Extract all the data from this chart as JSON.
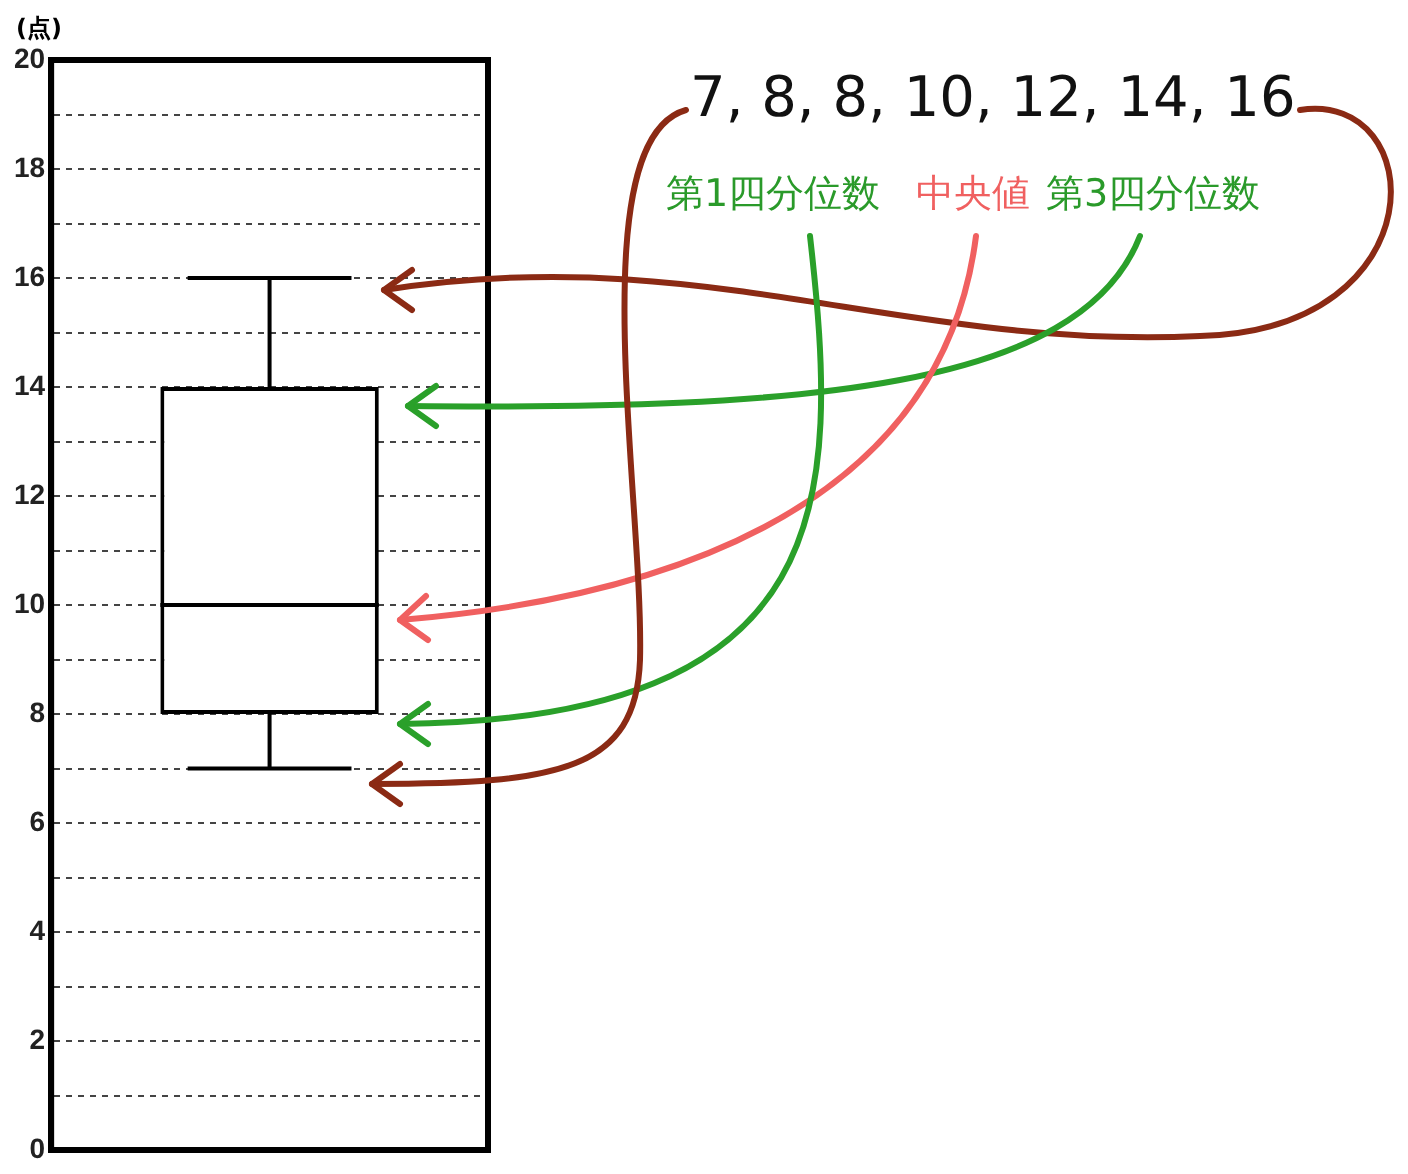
{
  "chart_data": {
    "type": "box",
    "ylabel": "(点)",
    "categories": [
      null
    ],
    "boxes": [
      {
        "low": 7,
        "q1": 8,
        "median": 10,
        "q3": 14,
        "high": 16
      }
    ],
    "color": "#000000",
    "ylim": [
      0,
      20
    ],
    "yticks": [
      0,
      {
        "value": 1,
        "label": null
      },
      2,
      {
        "value": 3,
        "label": null
      },
      4,
      {
        "value": 5,
        "label": null
      },
      6,
      {
        "value": 7,
        "label": null
      },
      8,
      {
        "value": 9,
        "label": null
      },
      10,
      {
        "value": 11,
        "label": null
      },
      12,
      {
        "value": 13,
        "label": null
      },
      14,
      {
        "value": 15,
        "label": null
      },
      16,
      {
        "value": 17,
        "label": null
      },
      18,
      {
        "value": 19,
        "label": null
      },
      20
    ],
    "grid": true,
    "annotations": [
      "7, 8, 8, 10, 12, 14, 16",
      "第1四分位数",
      "中央値",
      "第3四分位数"
    ]
  }
}
